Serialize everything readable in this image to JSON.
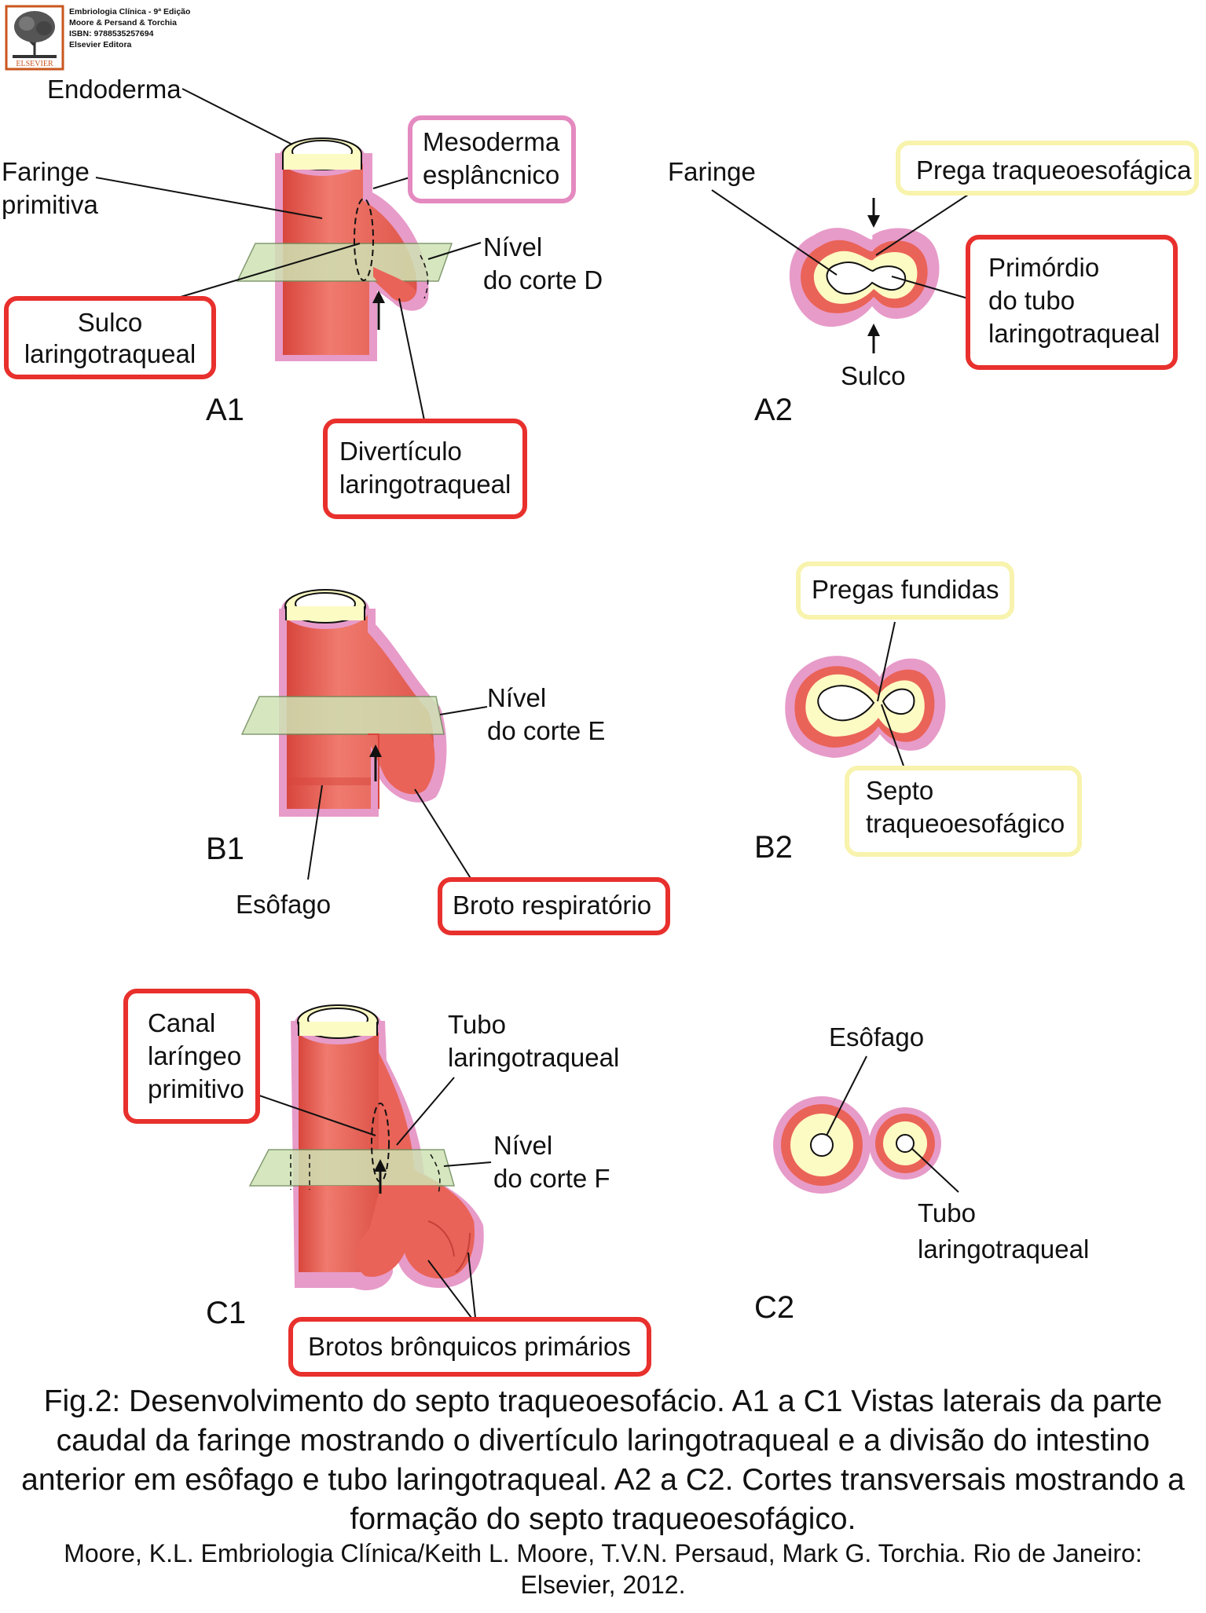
{
  "publisher_header": {
    "line1": "Embriologia Clínica - 9ª Edição",
    "line2": "Moore & Persand & Torchia",
    "line3": "ISBN: 9788535257694",
    "line4": "Elsevier Editora",
    "logo_text": "ELSEVIER"
  },
  "colors": {
    "tissue_red": "#ea6358",
    "tissue_pink": "#e79bc9",
    "endoderm_yellow": "#fdfbc4",
    "plane_green": "#cfe3b4",
    "box_red": "#e8302d",
    "box_pink": "#e48ac0",
    "box_yellow": "#f8f3ad"
  },
  "panels": {
    "A1": "A1",
    "A2": "A2",
    "B1": "B1",
    "B2": "B2",
    "C1": "C1",
    "C2": "C2"
  },
  "labels": {
    "a1_endoderma": "Endoderma",
    "a1_faringe_1": "Faringe",
    "a1_faringe_2": "primitiva",
    "a1_mesoderma_1": "Mesoderma",
    "a1_mesoderma_2": "esplâncnico",
    "a1_nivel": "Nível",
    "a1_corte": "do corte D",
    "a1_sulco_1": "Sulco",
    "a1_sulco_2": "laringotraqueal",
    "a1_diverticulo_1": "Divertículo",
    "a1_diverticulo_2": "laringotraqueal",
    "a2_faringe": "Faringe",
    "a2_prega": "Prega traqueoesofágica",
    "a2_primordio_1": "Primórdio",
    "a2_primordio_2": "do tubo",
    "a2_primordio_3": "laringotraqueal",
    "a2_sulco": "Sulco",
    "b1_nivel": "Nível",
    "b1_corte": "do corte E",
    "b1_esofago": "Esôfago",
    "b1_broto": "Broto respiratório",
    "b2_pregas": "Pregas fundidas",
    "b2_septo_1": "Septo",
    "b2_septo_2": "traqueoesofágico",
    "c1_canal_1": "Canal",
    "c1_canal_2": "laríngeo",
    "c1_canal_3": "primitivo",
    "c1_tubo_1": "Tubo",
    "c1_tubo_2": "laringotraqueal",
    "c1_nivel": "Nível",
    "c1_corte": "do corte F",
    "c1_brotos": "Brotos brônquicos primários",
    "c2_esofago": "Esôfago",
    "c2_tubo_1": "Tubo",
    "c2_tubo_2": "laringotraqueal"
  },
  "caption": "Fig.2: Desenvolvimento do septo traqueoesofácio. A1 a C1 Vistas laterais da parte caudal da faringe mostrando o divertículo laringotraqueal e a divisão do intestino anterior em esôfago e tubo laringotraqueal. A2 a C2. Cortes transversais mostrando a formação do septo traqueoesofágico.",
  "reference": "Moore, K.L. Embriologia Clínica/Keith L. Moore, T.V.N. Persaud, Mark G. Torchia. Rio de Janeiro: Elsevier, 2012."
}
